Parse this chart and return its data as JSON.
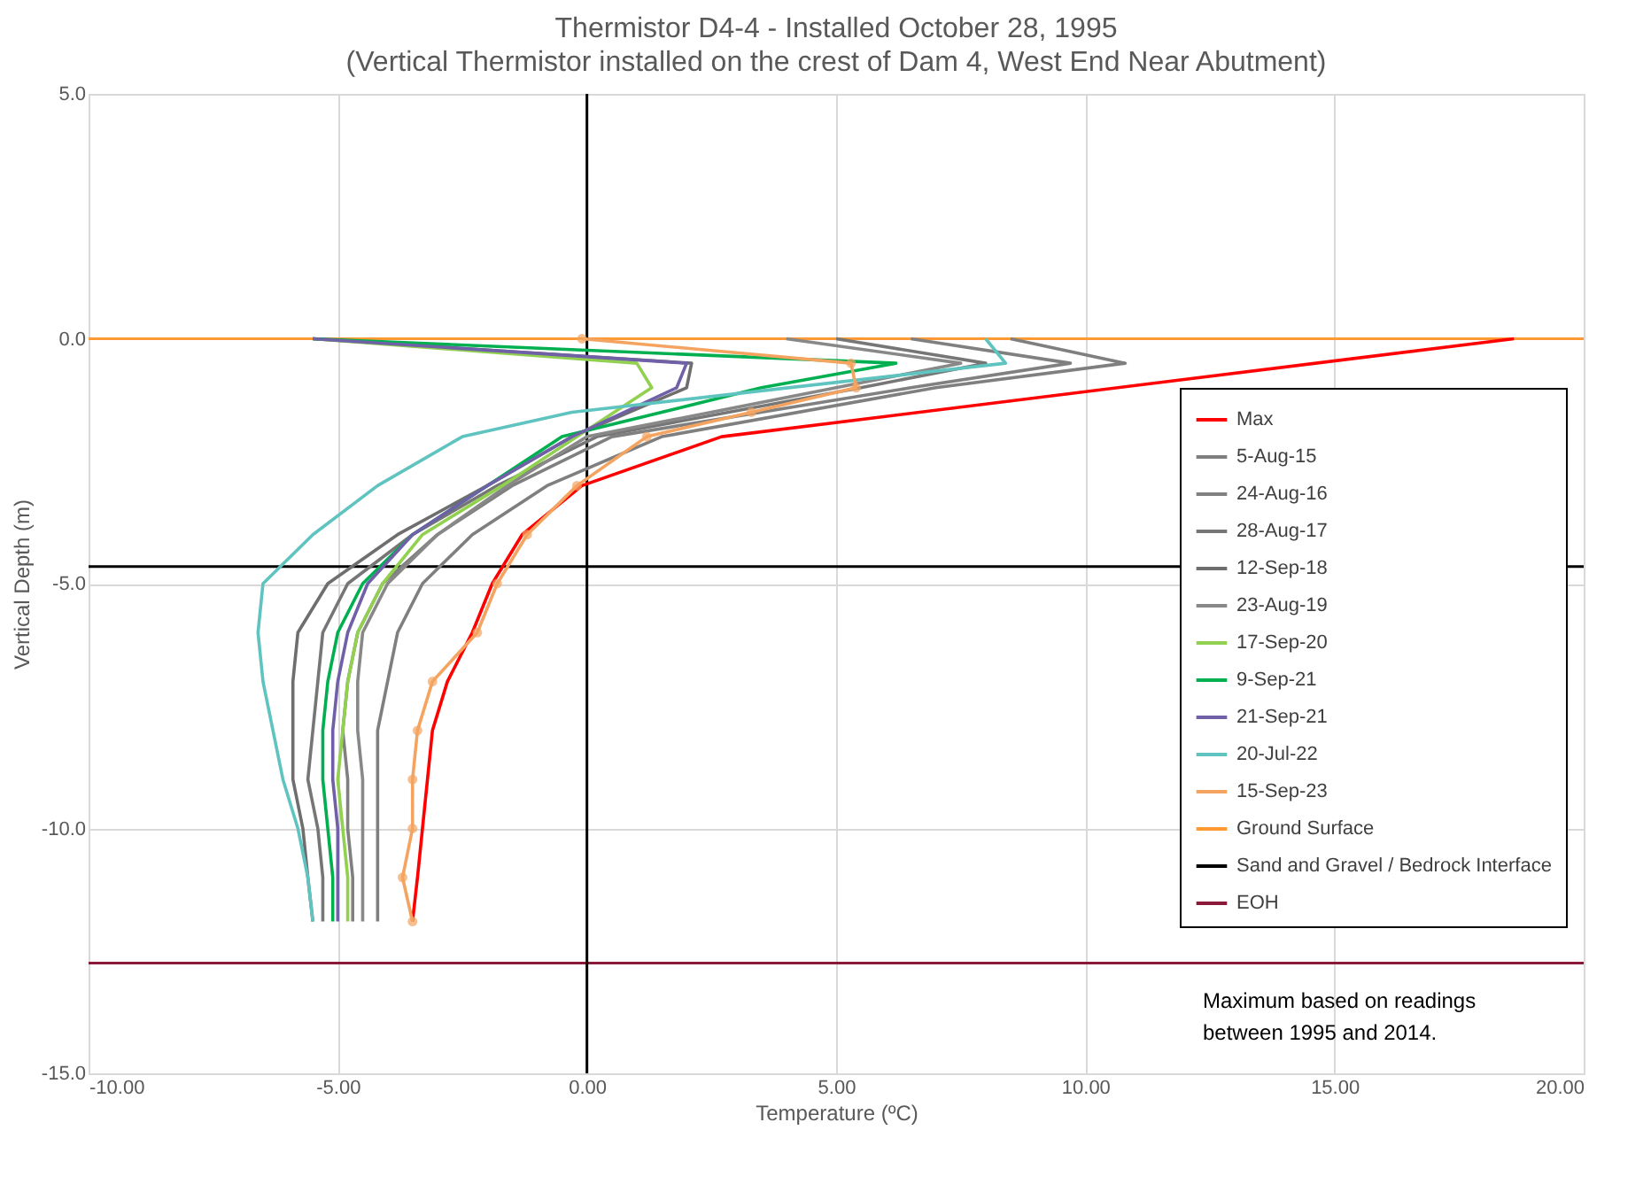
{
  "chart_data": {
    "type": "line",
    "title": "Thermistor D4-4 - Installed October 28, 1995",
    "subtitle": "(Vertical Thermistor installed on the crest of Dam 4, West End Near Abutment)",
    "xlabel": "Temperature (ºC)",
    "ylabel": "Vertical Depth (m)",
    "xlim": [
      -10,
      20
    ],
    "ylim": [
      -15,
      5
    ],
    "xticks": [
      {
        "value": -10,
        "label": "-10.00"
      },
      {
        "value": -5,
        "label": "-5.00"
      },
      {
        "value": 0,
        "label": "0.00"
      },
      {
        "value": 5,
        "label": "5.00"
      },
      {
        "value": 10,
        "label": "10.00"
      },
      {
        "value": 15,
        "label": "15.00"
      },
      {
        "value": 20,
        "label": "20.00"
      }
    ],
    "yticks": [
      {
        "value": -15,
        "label": "-15.0"
      },
      {
        "value": -10,
        "label": "-10.0"
      },
      {
        "value": -5,
        "label": "-5.0"
      },
      {
        "value": 0,
        "label": "0.0"
      },
      {
        "value": 5,
        "label": "5.0"
      }
    ],
    "grid": true,
    "legend": "right",
    "marker": "none",
    "line_style": "solid",
    "series": [
      {
        "name": "Max",
        "color": "#ff0000",
        "x": [
          18.6,
          2.7,
          -0.1,
          -1.3,
          -1.9,
          -2.3,
          -2.8,
          -3.1,
          -3.2,
          -3.3,
          -3.4,
          -3.5
        ],
        "values": [
          0,
          -2,
          -3,
          -4,
          -5,
          -6,
          -7,
          -8,
          -9,
          -10,
          -11,
          -11.9
        ]
      },
      {
        "name": "5-Aug-15",
        "color": "#7f7f7f",
        "x": [
          8.5,
          10.8,
          7.0,
          1.5,
          -0.8,
          -2.3,
          -3.3,
          -3.8,
          -4.0,
          -4.2,
          -4.2,
          -4.2,
          -4.2,
          -4.2
        ],
        "values": [
          0,
          -0.5,
          -1,
          -2,
          -3,
          -4,
          -5,
          -6,
          -7,
          -8,
          -9,
          -10,
          -11,
          -11.9
        ]
      },
      {
        "name": "24-Aug-16",
        "color": "#808080",
        "x": [
          6.5,
          9.7,
          6.5,
          0.5,
          -1.5,
          -3.0,
          -4.1,
          -4.6,
          -4.8,
          -4.9,
          -4.8,
          -4.8,
          -4.7,
          -4.7
        ],
        "values": [
          0,
          -0.5,
          -1,
          -2,
          -3,
          -4,
          -5,
          -6,
          -7,
          -8,
          -9,
          -10,
          -11,
          -11.9
        ]
      },
      {
        "name": "28-Aug-17",
        "color": "#767676",
        "x": [
          5.0,
          8.0,
          5.5,
          0.2,
          -1.8,
          -3.5,
          -4.8,
          -5.3,
          -5.4,
          -5.5,
          -5.6,
          -5.4,
          -5.3,
          -5.3
        ],
        "values": [
          0,
          -0.5,
          -1,
          -2,
          -3,
          -4,
          -5,
          -6,
          -7,
          -8,
          -9,
          -10,
          -11,
          -11.9
        ]
      },
      {
        "name": "12-Sep-18",
        "color": "#6e6e6e",
        "x": [
          -5.5,
          2.1,
          2.0,
          -0.3,
          -2.0,
          -3.8,
          -5.2,
          -5.8,
          -5.9,
          -5.9,
          -5.9,
          -5.7,
          -5.6,
          -5.5
        ],
        "values": [
          0,
          -0.5,
          -1,
          -2,
          -3,
          -4,
          -5,
          -6,
          -7,
          -8,
          -9,
          -10,
          -11,
          -11.9
        ]
      },
      {
        "name": "23-Aug-19",
        "color": "#888888",
        "x": [
          4.0,
          7.5,
          5.0,
          0.0,
          -1.6,
          -3.0,
          -4.0,
          -4.5,
          -4.6,
          -4.6,
          -4.5,
          -4.5,
          -4.5,
          -4.5
        ],
        "values": [
          0,
          -0.5,
          -1,
          -2,
          -3,
          -4,
          -5,
          -6,
          -7,
          -8,
          -9,
          -10,
          -11,
          -11.9
        ]
      },
      {
        "name": "17-Sep-20",
        "color": "#92d050",
        "x": [
          -5.5,
          1.0,
          1.3,
          -0.2,
          -1.7,
          -3.3,
          -4.1,
          -4.6,
          -4.8,
          -4.9,
          -5.0,
          -4.9,
          -4.8,
          -4.8
        ],
        "values": [
          0,
          -0.5,
          -1,
          -2,
          -3,
          -4,
          -5,
          -6,
          -7,
          -8,
          -9,
          -10,
          -11,
          -11.9
        ]
      },
      {
        "name": "9-Sep-21",
        "color": "#00b050",
        "x": [
          -5.5,
          6.2,
          3.5,
          -0.5,
          -2.0,
          -3.5,
          -4.5,
          -5.0,
          -5.2,
          -5.3,
          -5.3,
          -5.2,
          -5.1,
          -5.1
        ],
        "values": [
          0,
          -0.5,
          -1,
          -2,
          -3,
          -4,
          -5,
          -6,
          -7,
          -8,
          -9,
          -10,
          -11,
          -11.9
        ]
      },
      {
        "name": "21-Sep-21",
        "color": "#7060a8",
        "x": [
          -5.5,
          2.0,
          1.8,
          -0.3,
          -2.0,
          -3.5,
          -4.4,
          -4.8,
          -5.0,
          -5.1,
          -5.1,
          -5.0,
          -5.0,
          -5.0
        ],
        "values": [
          0,
          -0.5,
          -1,
          -2,
          -3,
          -4,
          -5,
          -6,
          -7,
          -8,
          -9,
          -10,
          -11,
          -11.9
        ]
      },
      {
        "name": "20-Jul-22",
        "color": "#5fc4c0",
        "x": [
          8.0,
          8.4,
          -0.3,
          -2.5,
          -4.2,
          -5.5,
          -6.5,
          -6.6,
          -6.5,
          -6.3,
          -6.1,
          -5.8,
          -5.6,
          -5.5
        ],
        "values": [
          0,
          -0.5,
          -1.5,
          -2,
          -3,
          -4,
          -5,
          -6,
          -7,
          -8,
          -9,
          -10,
          -11,
          -11.9
        ]
      },
      {
        "name": "15-Sep-23",
        "color": "#f4a460",
        "marker": "circle",
        "x": [
          -0.1,
          5.3,
          5.4,
          3.3,
          1.2,
          -0.2,
          -1.2,
          -1.8,
          -2.2,
          -3.1,
          -3.4,
          -3.5,
          -3.5,
          -3.7,
          -3.5
        ],
        "values": [
          0,
          -0.5,
          -1,
          -1.5,
          -2,
          -3,
          -4,
          -5,
          -6,
          -7,
          -8,
          -9,
          -10,
          -11,
          -11.9
        ]
      }
    ],
    "ref_lines": [
      {
        "axis": "y",
        "value": 0,
        "label": "Ground Surface",
        "color": "#ff9933"
      },
      {
        "axis": "y",
        "value": -4.65,
        "label": "Sand and Gravel / Bedrock Interface",
        "color": "#000000"
      },
      {
        "axis": "y",
        "value": -12.75,
        "label": "EOH",
        "color": "#8b1a3a"
      },
      {
        "axis": "x",
        "value": 0,
        "color": "#000000"
      }
    ],
    "annotations": [
      "Maximum based on readings\nbetween  1995 and 2014."
    ]
  }
}
